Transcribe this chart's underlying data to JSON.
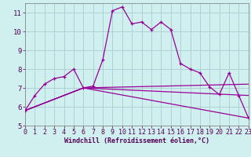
{
  "xlabel": "Windchill (Refroidissement éolien,°C)",
  "xlim": [
    0,
    23
  ],
  "ylim": [
    5,
    11.5
  ],
  "yticks": [
    5,
    6,
    7,
    8,
    9,
    10,
    11
  ],
  "xticks": [
    0,
    1,
    2,
    3,
    4,
    5,
    6,
    7,
    8,
    9,
    10,
    11,
    12,
    13,
    14,
    15,
    16,
    17,
    18,
    19,
    20,
    21,
    22,
    23
  ],
  "bg_color": "#cff0ee",
  "line_color": "#990099",
  "grid_color": "#aacccc",
  "series1_x": [
    0,
    1,
    2,
    3,
    4,
    5,
    6,
    7,
    8,
    9,
    10,
    11,
    12,
    13,
    14,
    15,
    16,
    17,
    18,
    19,
    20,
    21,
    22,
    23
  ],
  "series1_y": [
    5.8,
    6.6,
    7.2,
    7.5,
    7.6,
    8.0,
    7.0,
    7.1,
    8.5,
    11.1,
    11.3,
    10.4,
    10.5,
    10.1,
    10.5,
    10.1,
    8.3,
    8.0,
    7.8,
    7.05,
    6.65,
    7.8,
    6.6,
    5.4
  ],
  "series2_x": [
    0,
    6,
    23
  ],
  "series2_y": [
    5.8,
    7.0,
    5.4
  ],
  "series3_x": [
    0,
    6,
    23
  ],
  "series3_y": [
    5.8,
    7.0,
    6.6
  ],
  "series4_x": [
    0,
    6,
    23
  ],
  "series4_y": [
    5.8,
    7.0,
    7.2
  ],
  "xlabel_color": "#550055",
  "tick_color": "#550055",
  "font_family": "monospace",
  "xlabel_fontsize": 6,
  "tick_fontsize": 6
}
